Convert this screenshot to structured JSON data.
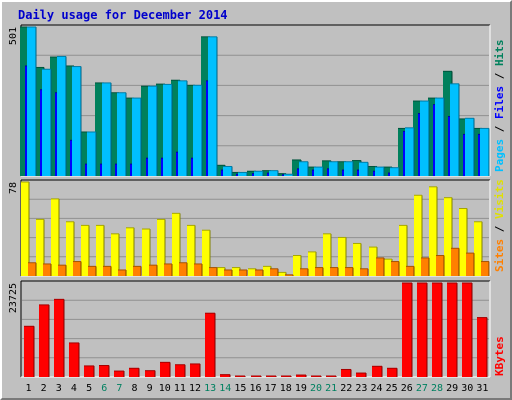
{
  "title": "Daily usage for December 2014",
  "chart_data": [
    {
      "type": "bar",
      "panel": "hits-files-pages",
      "categories": [
        "1",
        "2",
        "3",
        "4",
        "5",
        "6",
        "7",
        "8",
        "9",
        "10",
        "11",
        "12",
        "13",
        "14",
        "15",
        "16",
        "17",
        "18",
        "19",
        "20",
        "21",
        "22",
        "23",
        "24",
        "25",
        "26",
        "27",
        "28",
        "29",
        "30",
        "31"
      ],
      "weekend_days": [
        "6",
        "7",
        "13",
        "14",
        "20",
        "21",
        "27",
        "28"
      ],
      "ylim": [
        0,
        501
      ],
      "max_label": "501",
      "legend": [
        {
          "label": "Hits",
          "color": "#00805c"
        },
        {
          "label": "Files",
          "color": "#0000ff"
        },
        {
          "label": "Pages",
          "color": "#00c0ff"
        }
      ],
      "series": [
        {
          "name": "Hits",
          "color": "#00805c",
          "values": [
            501,
            365,
            400,
            370,
            148,
            313,
            280,
            262,
            302,
            309,
            322,
            305,
            468,
            36,
            12,
            16,
            18,
            8,
            54,
            30,
            51,
            48,
            52,
            32,
            30,
            160,
            252,
            262,
            352,
            192,
            160
          ]
        },
        {
          "name": "Files",
          "color": "#0000ff",
          "values": [
            370,
            290,
            280,
            120,
            40,
            40,
            40,
            40,
            60,
            60,
            80,
            60,
            320,
            20,
            6,
            8,
            10,
            4,
            24,
            20,
            24,
            20,
            20,
            16,
            10,
            150,
            210,
            240,
            200,
            140,
            140
          ]
        },
        {
          "name": "Pages",
          "color": "#00c0ff",
          "values": [
            501,
            359,
            402,
            368,
            148,
            313,
            280,
            262,
            302,
            308,
            320,
            305,
            468,
            32,
            12,
            16,
            18,
            6,
            48,
            30,
            48,
            48,
            46,
            30,
            28,
            162,
            252,
            262,
            310,
            194,
            160
          ]
        }
      ]
    },
    {
      "type": "bar",
      "panel": "visits-sites",
      "categories": [
        "1",
        "2",
        "3",
        "4",
        "5",
        "6",
        "7",
        "8",
        "9",
        "10",
        "11",
        "12",
        "13",
        "14",
        "15",
        "16",
        "17",
        "18",
        "19",
        "20",
        "21",
        "22",
        "23",
        "24",
        "25",
        "26",
        "27",
        "28",
        "29",
        "30",
        "31"
      ],
      "ylim": [
        0,
        78
      ],
      "max_label": "78",
      "legend": [
        {
          "label": "Visits",
          "color": "#ffff00"
        },
        {
          "label": "Sites",
          "color": "#ff8000"
        }
      ],
      "series": [
        {
          "name": "Visits",
          "color": "#ffff00",
          "values": [
            78,
            47,
            64,
            45,
            42,
            42,
            35,
            40,
            39,
            47,
            52,
            42,
            38,
            7,
            7,
            6,
            8,
            3,
            17,
            20,
            35,
            32,
            27,
            24,
            14,
            42,
            67,
            74,
            65,
            56,
            45
          ]
        },
        {
          "name": "Sites",
          "color": "#ff8000",
          "values": [
            11,
            10,
            9,
            12,
            8,
            8,
            5,
            8,
            9,
            10,
            11,
            10,
            7,
            5,
            5,
            5,
            6,
            1,
            6,
            7,
            7,
            7,
            6,
            15,
            12,
            8,
            15,
            17,
            23,
            19,
            12
          ]
        }
      ]
    },
    {
      "type": "bar",
      "panel": "kbytes",
      "categories": [
        "1",
        "2",
        "3",
        "4",
        "5",
        "6",
        "7",
        "8",
        "9",
        "10",
        "11",
        "12",
        "13",
        "14",
        "15",
        "16",
        "17",
        "18",
        "19",
        "20",
        "21",
        "22",
        "23",
        "24",
        "25",
        "26",
        "27",
        "28",
        "29",
        "30",
        "31"
      ],
      "ylim": [
        0,
        23725
      ],
      "max_label": "23725",
      "legend": [
        {
          "label": "KBytes",
          "color": "#ff0000"
        }
      ],
      "series": [
        {
          "name": "KBytes",
          "color": "#ff0000",
          "values": [
            12800,
            18200,
            19600,
            8600,
            2800,
            2900,
            1500,
            2200,
            1600,
            3700,
            3100,
            3300,
            16100,
            600,
            200,
            200,
            100,
            100,
            500,
            200,
            200,
            1900,
            1000,
            2700,
            2200,
            23725,
            23725,
            23725,
            23725,
            23725,
            15000
          ]
        }
      ]
    }
  ]
}
